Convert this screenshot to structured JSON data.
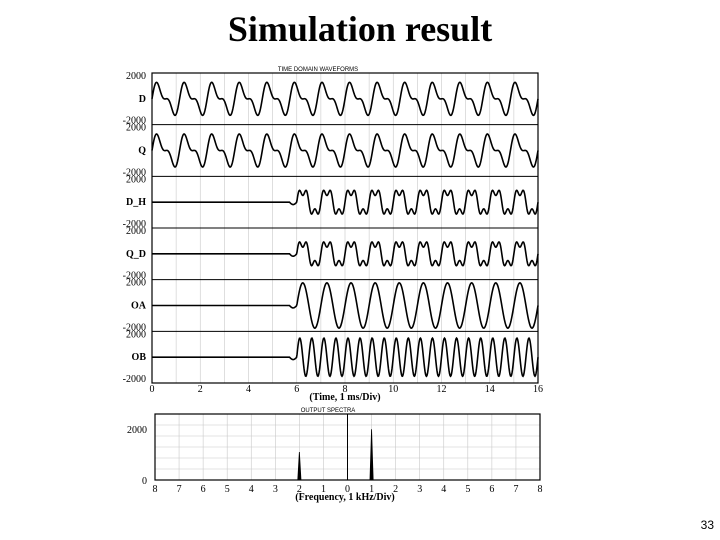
{
  "slide": {
    "title": "Simulation result",
    "page_number": "33"
  },
  "chart_data": [
    {
      "type": "line",
      "title": "TIME DOMAIN WAVEFORMS",
      "xlabel": "(Time, 1 ms/Div)",
      "x_ticks": [
        "0",
        "2",
        "4",
        "6",
        "8",
        "10",
        "12",
        "14",
        "16"
      ],
      "xlim": [
        0,
        16
      ],
      "ylim": [
        -2000,
        2000
      ],
      "grid": true,
      "series": [
        {
          "name": "D",
          "y_top": "2000",
          "y_bottom": "-2000",
          "start_ms": 0,
          "cycles_per_ms": 0.875,
          "amplitude": 1600,
          "harmonic_ratio": 0.35,
          "harmonic_multiple": 2
        },
        {
          "name": "Q",
          "y_top": "2000",
          "y_bottom": "-2000",
          "start_ms": 0,
          "cycles_per_ms": 0.875,
          "amplitude": 1600,
          "harmonic_ratio": 0.35,
          "harmonic_multiple": 2
        },
        {
          "name": "D_H",
          "y_top": "2000",
          "y_bottom": "-2000",
          "start_ms": 6,
          "cycles_per_ms": 1.0,
          "amplitude": 1400,
          "harmonic_ratio": 0.3,
          "harmonic_multiple": 3
        },
        {
          "name": "Q_D",
          "y_top": "2000",
          "y_bottom": "-2000",
          "start_ms": 6,
          "cycles_per_ms": 1.0,
          "amplitude": 1400,
          "harmonic_ratio": 0.3,
          "harmonic_multiple": 3
        },
        {
          "name": "OA",
          "y_top": "2000",
          "y_bottom": "-2000",
          "start_ms": 6,
          "cycles_per_ms": 1.0,
          "amplitude": 1900,
          "harmonic_ratio": 0.0,
          "harmonic_multiple": 1
        },
        {
          "name": "OB",
          "y_top": "2000",
          "y_bottom": "-2000",
          "start_ms": 6,
          "cycles_per_ms": 2.0,
          "amplitude": 1600,
          "harmonic_ratio": 0.0,
          "harmonic_multiple": 1
        }
      ]
    },
    {
      "type": "bar",
      "title": "OUTPUT SPECTRA",
      "xlabel": "(Frequency, 1 kHz/Div)",
      "x_ticks": [
        "8",
        "7",
        "6",
        "5",
        "4",
        "3",
        "2",
        "1",
        "0",
        "1",
        "2",
        "3",
        "4",
        "5",
        "6",
        "7",
        "8"
      ],
      "xlim": [
        -8,
        8
      ],
      "y_ticks": [
        "2000",
        "0"
      ],
      "ylim": [
        0,
        2600
      ],
      "grid": true,
      "peaks": [
        {
          "x": -2,
          "value": 1100
        },
        {
          "x": 1,
          "value": 2000
        }
      ]
    }
  ]
}
